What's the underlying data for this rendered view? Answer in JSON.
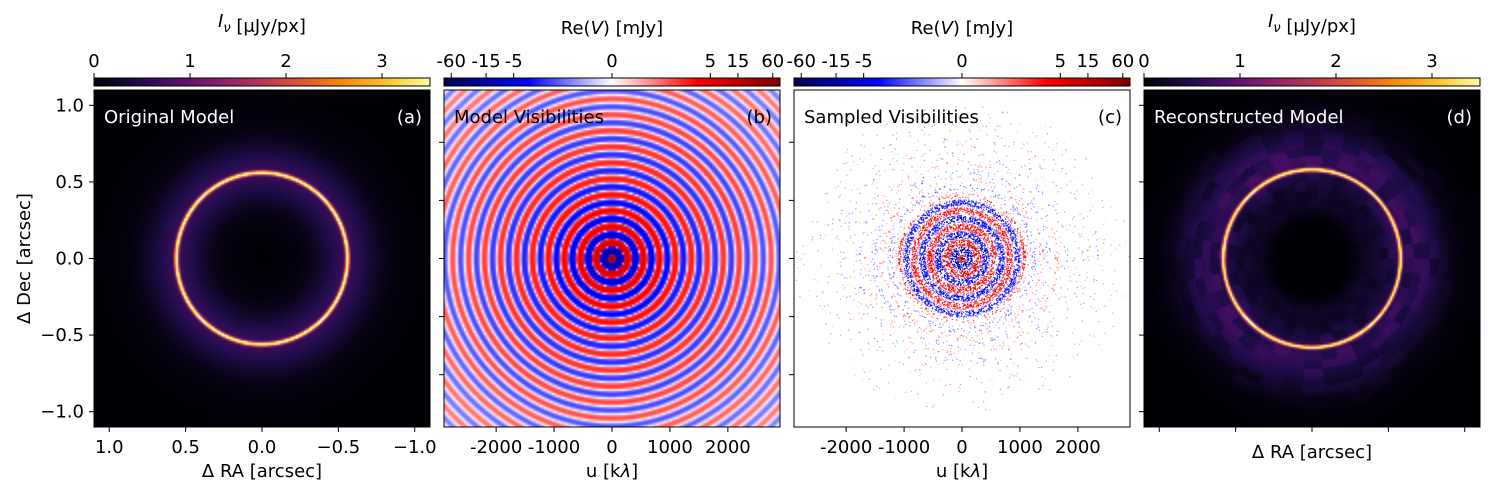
{
  "chart_data": [
    {
      "panel": "a",
      "type": "heatmap",
      "title": "Original Model",
      "panel_label": "(a)",
      "cmap": "inferno",
      "colorbar": {
        "label": "I_ν [μJy/px]",
        "range": [
          0,
          3.5
        ],
        "ticks": [
          "0",
          "1",
          "2",
          "3"
        ],
        "tick_values": [
          0,
          1,
          2,
          3
        ]
      },
      "xlabel": "Δ RA [arcsec]",
      "ylabel": "Δ Dec [arcsec]",
      "xlim": [
        1.1,
        -1.1
      ],
      "ylim": [
        -1.1,
        1.1
      ],
      "xticks": [
        "1.0",
        "0.5",
        "0.0",
        "−0.5",
        "−1.0"
      ],
      "xtick_values": [
        1.0,
        0.5,
        0.0,
        -0.5,
        -1.0
      ],
      "yticks": [
        "−1.0",
        "−0.5",
        "0.0",
        "0.5",
        "1.0"
      ],
      "ytick_values": [
        -1.0,
        -0.5,
        0.0,
        0.5,
        1.0
      ],
      "ring": {
        "radius_arcsec": 0.56,
        "peak": 3.5,
        "halo": "faint diffuse"
      }
    },
    {
      "panel": "b",
      "type": "heatmap",
      "title": "Model Visibilities",
      "panel_label": "(b)",
      "cmap": "seismic",
      "colorbar": {
        "label": "Re(V) [mJy]",
        "scale": "symlog",
        "range": [
          -80,
          80
        ],
        "ticks": [
          "-60",
          "-15",
          "-5",
          "0",
          "5",
          "15",
          "60"
        ],
        "tick_values": [
          -60,
          -15,
          -5,
          0,
          5,
          15,
          60
        ]
      },
      "xlabel": "u [kλ]",
      "xlim": [
        -2900,
        2900
      ],
      "ylim": [
        -2900,
        2900
      ],
      "xticks": [
        "-2000",
        "-1000",
        "0",
        "1000",
        "2000"
      ],
      "xtick_values": [
        -2000,
        -1000,
        0,
        1000,
        2000
      ],
      "ytick_values": [
        -2000,
        -1000,
        0,
        1000,
        2000
      ],
      "pattern": {
        "kind": "concentric rings",
        "ring_period_klambda": 275,
        "center_value_mJy": 60
      }
    },
    {
      "panel": "c",
      "type": "scatter",
      "title": "Sampled Visibilities",
      "panel_label": "(c)",
      "cmap": "seismic",
      "colorbar": {
        "label": "Re(V) [mJy]",
        "scale": "symlog",
        "range": [
          -80,
          80
        ],
        "ticks": [
          "-60",
          "-15",
          "-5",
          "0",
          "5",
          "15",
          "60"
        ],
        "tick_values": [
          -60,
          -15,
          -5,
          0,
          5,
          15,
          60
        ]
      },
      "xlabel": "u [kλ]",
      "xlim": [
        -2900,
        2900
      ],
      "ylim": [
        -2900,
        2900
      ],
      "xticks": [
        "-2000",
        "-1000",
        "0",
        "1000",
        "2000"
      ],
      "xtick_values": [
        -2000,
        -1000,
        0,
        1000,
        2000
      ],
      "ytick_values": [
        -2000,
        -1000,
        0,
        1000,
        2000
      ],
      "pattern": {
        "kind": "sparse uv sampling of model visibilities",
        "dense_radius_klambda": 1200,
        "max_radius_klambda": 2900
      }
    },
    {
      "panel": "d",
      "type": "heatmap",
      "title": "Reconstructed Model",
      "panel_label": "(d)",
      "cmap": "inferno",
      "colorbar": {
        "label": "I_ν [μJy/px]",
        "range": [
          0,
          3.5
        ],
        "ticks": [
          "0",
          "1",
          "2",
          "3"
        ],
        "tick_values": [
          0,
          1,
          2,
          3
        ]
      },
      "xlabel": "Δ RA [arcsec]",
      "xlim": [
        1.1,
        -1.1
      ],
      "ylim": [
        -1.1,
        1.1
      ],
      "xtick_values": [
        1.0,
        0.5,
        0.0,
        -0.5,
        -1.0
      ],
      "ytick_values": [
        -1.0,
        -0.5,
        0.0,
        0.5,
        1.0
      ],
      "ring": {
        "radius_arcsec": 0.58,
        "peak": 3.5,
        "halo": "patchy faint"
      }
    }
  ]
}
